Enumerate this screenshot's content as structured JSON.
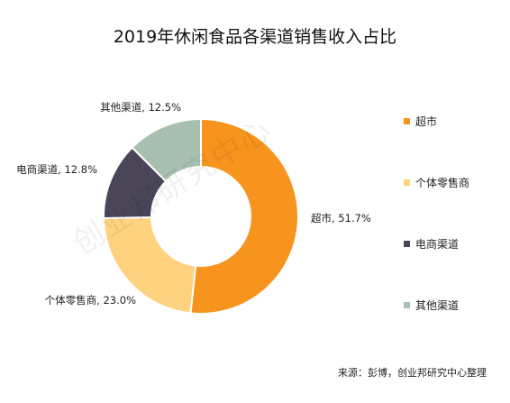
{
  "title": "2019年休闲食品各渠道销售收入占比",
  "source": "来源：彭博，创业邦研究中心整理",
  "watermark": "创业邦研究中心",
  "chart_data": {
    "type": "pie",
    "style": "donut",
    "title": "2019年休闲食品各渠道销售收入占比",
    "slices": [
      {
        "label": "超市",
        "value": 51.7,
        "display": "超市, 51.7%",
        "color": "#F7941E"
      },
      {
        "label": "个体零售商",
        "value": 23.0,
        "display": "个体零售商, 23.0%",
        "color": "#FFD27F"
      },
      {
        "label": "电商渠道",
        "value": 12.8,
        "display": "电商渠道, 12.8%",
        "color": "#4A4658"
      },
      {
        "label": "其他渠道",
        "value": 12.5,
        "display": "其他渠道, 12.5%",
        "color": "#A8C0B0"
      }
    ],
    "legend": {
      "placement": "right",
      "entries": [
        "超市",
        "个体零售商",
        "电商渠道",
        "其他渠道"
      ]
    }
  }
}
